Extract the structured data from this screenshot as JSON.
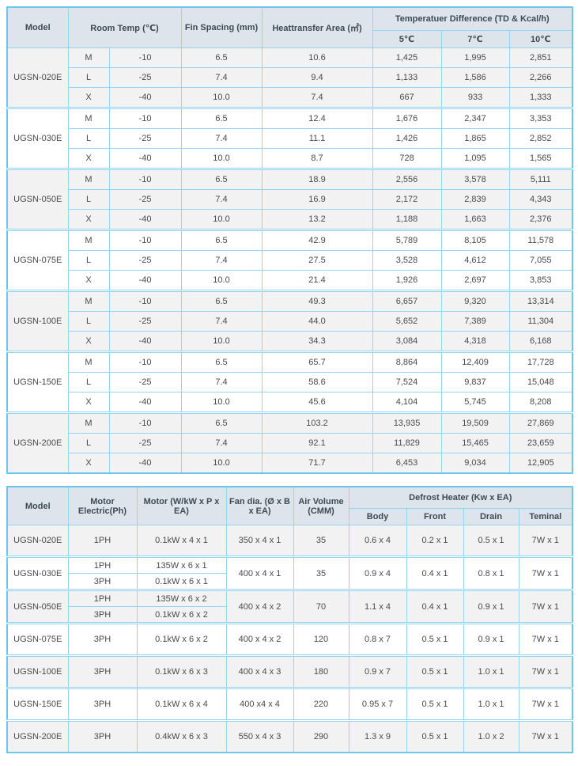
{
  "colors": {
    "border_outer": "#6cc6ec",
    "border_inner": "#95d4f1",
    "header_bg": "#dde4eb",
    "shaded_group_bg": "#f2f2f2",
    "header_text": "#3d4a55",
    "body_text": "#4a4a4a"
  },
  "table1": {
    "headers": {
      "model": "Model",
      "room_temp": "Room Temp (℃)",
      "fin_spacing": "Fin Spacing (mm)",
      "heat_area": "Heattransfer Area (㎡)",
      "td_group": "Temperatuer Difference (TD & Kcal/h)",
      "td_cols": [
        "5℃",
        "7℃",
        "10℃"
      ]
    },
    "groups": [
      {
        "model": "UGSN-020E",
        "rows": [
          [
            "M",
            "-10",
            "6.5",
            "10.6",
            "1,425",
            "1,995",
            "2,851"
          ],
          [
            "L",
            "-25",
            "7.4",
            "9.4",
            "1,133",
            "1,586",
            "2,266"
          ],
          [
            "X",
            "-40",
            "10.0",
            "7.4",
            "667",
            "933",
            "1,333"
          ]
        ]
      },
      {
        "model": "UGSN-030E",
        "rows": [
          [
            "M",
            "-10",
            "6.5",
            "12.4",
            "1,676",
            "2,347",
            "3,353"
          ],
          [
            "L",
            "-25",
            "7.4",
            "11.1",
            "1,426",
            "1,865",
            "2,852"
          ],
          [
            "X",
            "-40",
            "10.0",
            "8.7",
            "728",
            "1,095",
            "1,565"
          ]
        ]
      },
      {
        "model": "UGSN-050E",
        "rows": [
          [
            "M",
            "-10",
            "6.5",
            "18.9",
            "2,556",
            "3,578",
            "5,111"
          ],
          [
            "L",
            "-25",
            "7.4",
            "16.9",
            "2,172",
            "2,839",
            "4,343"
          ],
          [
            "X",
            "-40",
            "10.0",
            "13.2",
            "1,188",
            "1,663",
            "2,376"
          ]
        ]
      },
      {
        "model": "UGSN-075E",
        "rows": [
          [
            "M",
            "-10",
            "6.5",
            "42.9",
            "5,789",
            "8,105",
            "11,578"
          ],
          [
            "L",
            "-25",
            "7.4",
            "27.5",
            "3,528",
            "4,612",
            "7,055"
          ],
          [
            "X",
            "-40",
            "10.0",
            "21.4",
            "1,926",
            "2,697",
            "3,853"
          ]
        ]
      },
      {
        "model": "UGSN-100E",
        "rows": [
          [
            "M",
            "-10",
            "6.5",
            "49.3",
            "6,657",
            "9,320",
            "13,314"
          ],
          [
            "L",
            "-25",
            "7.4",
            "44.0",
            "5,652",
            "7,389",
            "11,304"
          ],
          [
            "X",
            "-40",
            "10.0",
            "34.3",
            "3,084",
            "4,318",
            "6,168"
          ]
        ]
      },
      {
        "model": "UGSN-150E",
        "rows": [
          [
            "M",
            "-10",
            "6.5",
            "65.7",
            "8,864",
            "12,409",
            "17,728"
          ],
          [
            "L",
            "-25",
            "7.4",
            "58.6",
            "7,524",
            "9,837",
            "15,048"
          ],
          [
            "X",
            "-40",
            "10.0",
            "45.6",
            "4,104",
            "5,745",
            "8,208"
          ]
        ]
      },
      {
        "model": "UGSN-200E",
        "rows": [
          [
            "M",
            "-10",
            "6.5",
            "103.2",
            "13,935",
            "19,509",
            "27,869"
          ],
          [
            "L",
            "-25",
            "7.4",
            "92.1",
            "11,829",
            "15,465",
            "23,659"
          ],
          [
            "X",
            "-40",
            "10.0",
            "71.7",
            "6,453",
            "9,034",
            "12,905"
          ]
        ]
      }
    ]
  },
  "table2": {
    "headers": {
      "model": "Model",
      "electric": "Motor Electric(Ph)",
      "motor": "Motor (W/kW x P x EA)",
      "fan": "Fan dia. (Ø x B x EA)",
      "air": "Air Volume (CMM)",
      "defrost_group": "Defrost Heater (Kw x EA)",
      "defrost_cols": [
        "Body",
        "Front",
        "Drain",
        "Teminal"
      ]
    },
    "groups": [
      {
        "model": "UGSN-020E",
        "sub": [
          {
            "ph": "1PH",
            "motor": "0.1kW x 4 x 1"
          }
        ],
        "fan": "350 x 4 x 1",
        "air": "35",
        "body": "0.6 x 4",
        "front": "0.2 x 1",
        "drain": "0.5 x 1",
        "terminal": "7W x 1"
      },
      {
        "model": "UGSN-030E",
        "sub": [
          {
            "ph": "1PH",
            "motor": "135W x 6 x 1"
          },
          {
            "ph": "3PH",
            "motor": "0.1kW x 6 x 1"
          }
        ],
        "fan": "400 x 4 x 1",
        "air": "35",
        "body": "0.9 x 4",
        "front": "0.4 x 1",
        "drain": "0.8 x 1",
        "terminal": "7W x 1"
      },
      {
        "model": "UGSN-050E",
        "sub": [
          {
            "ph": "1PH",
            "motor": "135W x 6 x 2"
          },
          {
            "ph": "3PH",
            "motor": "0.1kW x 6 x 2"
          }
        ],
        "fan": "400 x 4 x 2",
        "air": "70",
        "body": "1.1 x 4",
        "front": "0.4 x 1",
        "drain": "0.9 x 1",
        "terminal": "7W x 1"
      },
      {
        "model": "UGSN-075E",
        "sub": [
          {
            "ph": "3PH",
            "motor": "0.1kW x 6 x 2"
          }
        ],
        "fan": "400 x 4 x 2",
        "air": "120",
        "body": "0.8 x 7",
        "front": "0.5 x 1",
        "drain": "0.9 x 1",
        "terminal": "7W x 1"
      },
      {
        "model": "UGSN-100E",
        "sub": [
          {
            "ph": "3PH",
            "motor": "0.1kW x 6 x 3"
          }
        ],
        "fan": "400 x 4 x 3",
        "air": "180",
        "body": "0.9 x 7",
        "front": "0.5 x 1",
        "drain": "1.0 x 1",
        "terminal": "7W x 1"
      },
      {
        "model": "UGSN-150E",
        "sub": [
          {
            "ph": "3PH",
            "motor": "0.1kW x 6 x 4"
          }
        ],
        "fan": "400 x4 x 4",
        "air": "220",
        "body": "0.95 x 7",
        "front": "0.5 x 1",
        "drain": "1.0 x 1",
        "terminal": "7W x 1"
      },
      {
        "model": "UGSN-200E",
        "sub": [
          {
            "ph": "3PH",
            "motor": "0.4kW x 6 x 3"
          }
        ],
        "fan": "550 x 4 x 3",
        "air": "290",
        "body": "1.3 x 9",
        "front": "0.5 x 1",
        "drain": "1.0 x 2",
        "terminal": "7W x 1"
      }
    ]
  }
}
